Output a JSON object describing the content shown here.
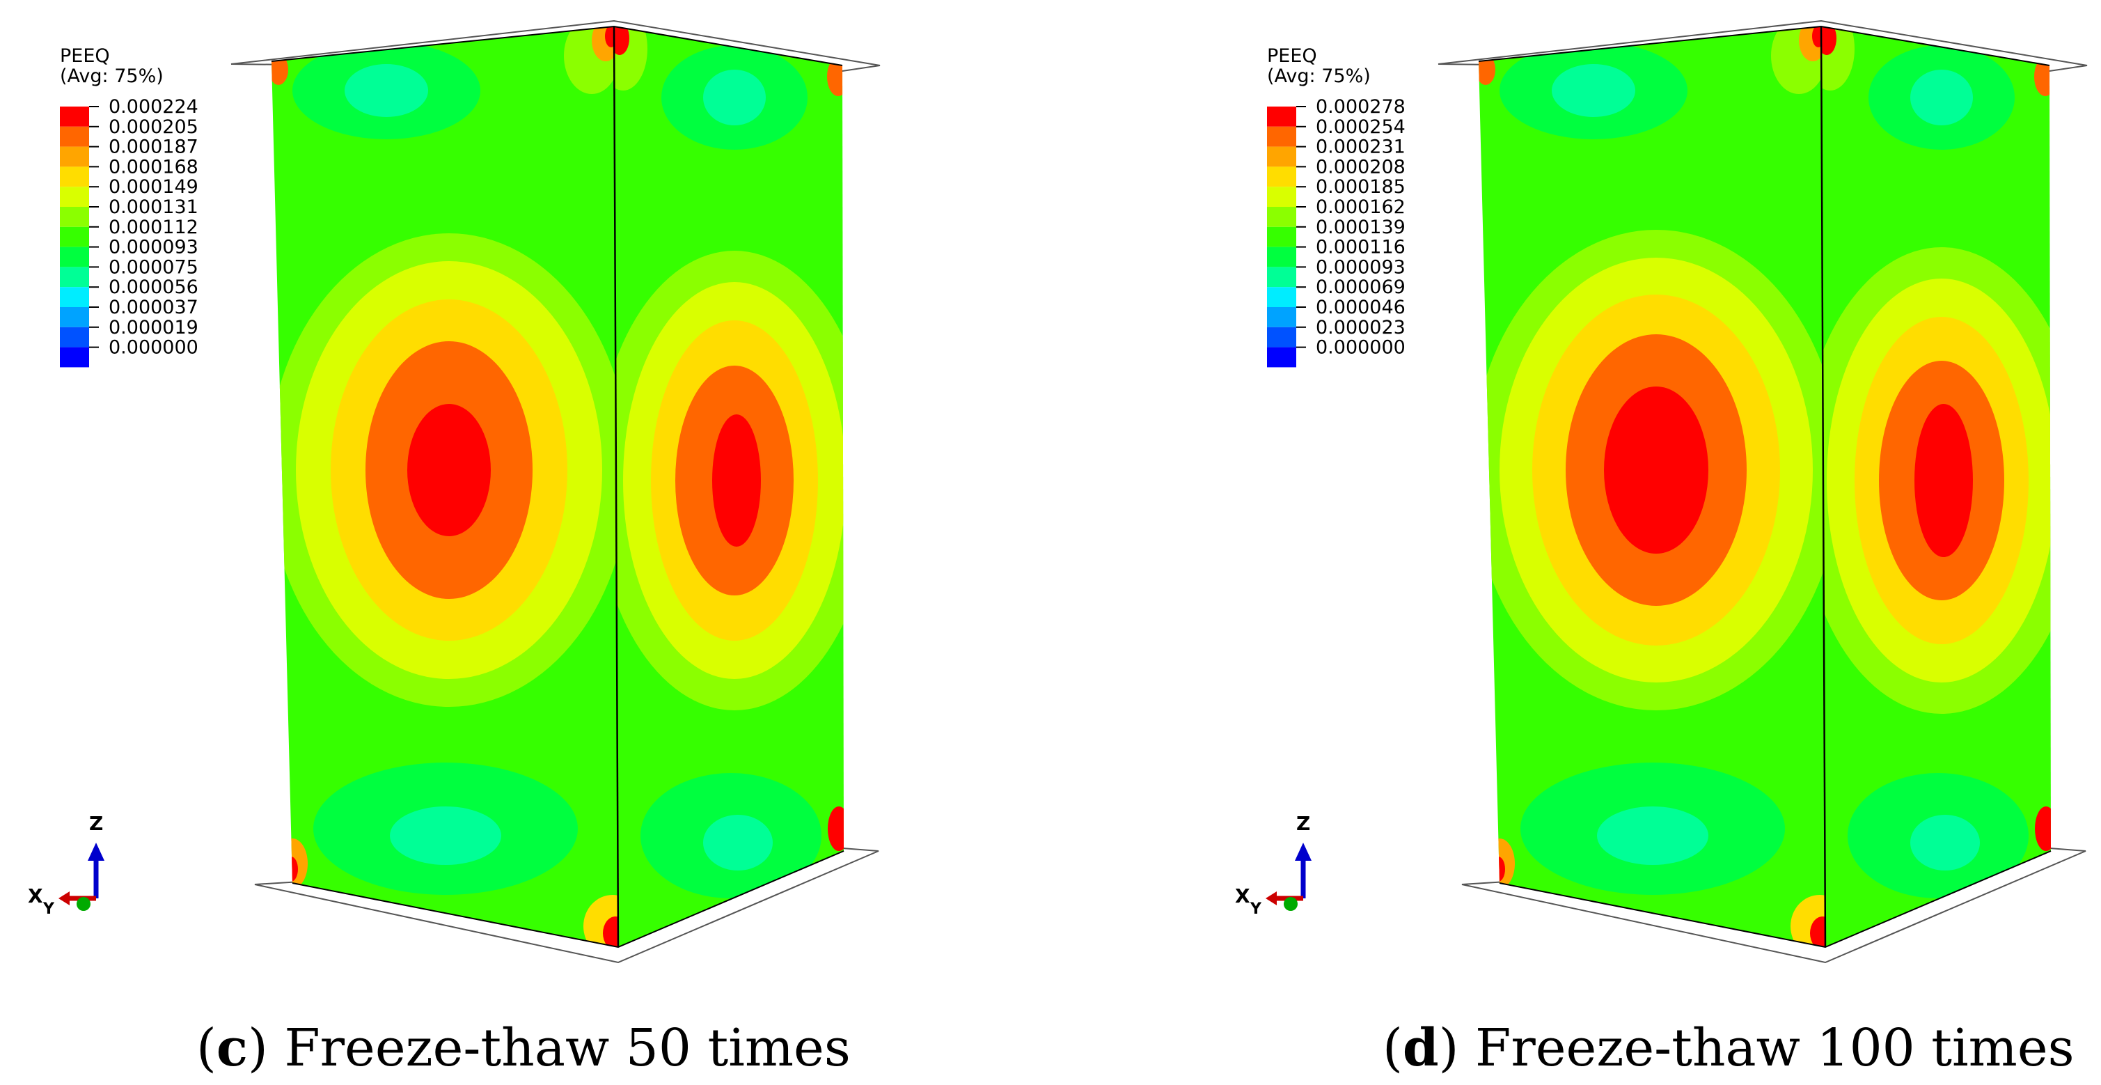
{
  "colors": {
    "scale": [
      "#0000ff",
      "#0052ff",
      "#00a3ff",
      "#00edff",
      "#00ff96",
      "#00ff3f",
      "#36ff00",
      "#8bff00",
      "#d9ff00",
      "#ffdd00",
      "#ffa500",
      "#ff6600",
      "#ff0000"
    ],
    "edge": "#000000",
    "plate_edge": "#555555",
    "background": "#ffffff"
  },
  "panels": [
    {
      "id": "c",
      "legend": {
        "title_line1": "PEEQ",
        "title_line2": "(Avg: 75%)",
        "labels": [
          "0.000224",
          "0.000205",
          "0.000187",
          "0.000168",
          "0.000149",
          "0.000131",
          "0.000112",
          "0.000093",
          "0.000075",
          "0.000056",
          "0.000037",
          "0.000019",
          "0.000000"
        ]
      },
      "caption": {
        "open": "(",
        "letter": "c",
        "close": ")",
        "text": " Freeze-thaw 50 times"
      },
      "triad": {
        "z": "Z",
        "x": "X",
        "y": "Y"
      }
    },
    {
      "id": "d",
      "legend": {
        "title_line1": "PEEQ",
        "title_line2": "(Avg: 75%)",
        "labels": [
          "0.000278",
          "0.000254",
          "0.000231",
          "0.000208",
          "0.000185",
          "0.000162",
          "0.000139",
          "0.000116",
          "0.000093",
          "0.000069",
          "0.000046",
          "0.000023",
          "0.000000"
        ]
      },
      "caption": {
        "open": "(",
        "letter": "d",
        "close": ")",
        "text": " Freeze-thaw 100 times"
      },
      "triad": {
        "z": "Z",
        "x": "X",
        "y": "Y"
      }
    }
  ]
}
